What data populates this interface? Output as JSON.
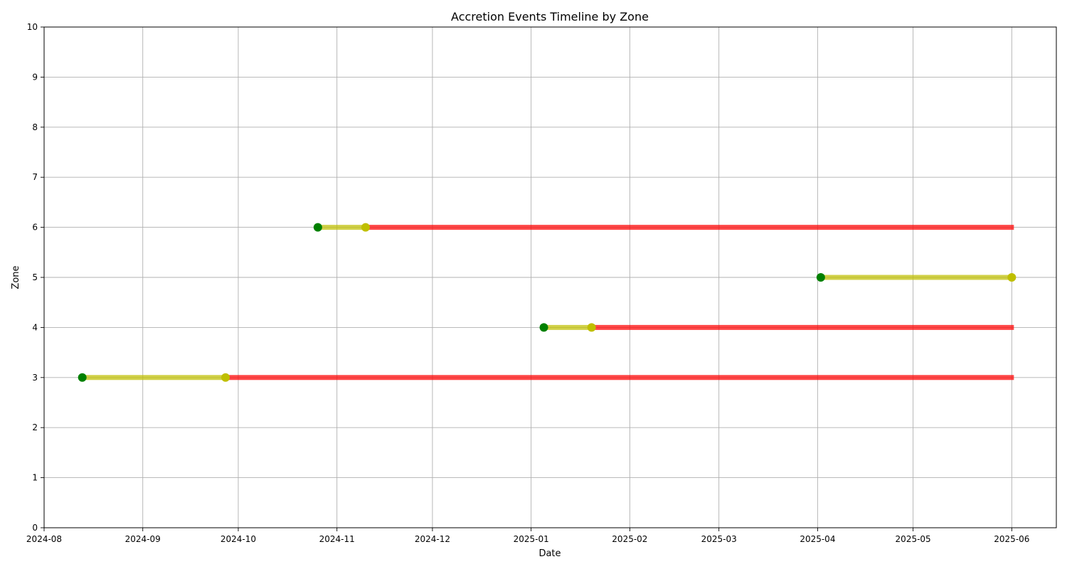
{
  "chart_data": {
    "type": "line",
    "title": "Accretion Events Timeline by Zone",
    "xlabel": "Date",
    "ylabel": "Zone",
    "xlim": [
      "2024-08-01",
      "2025-06-15"
    ],
    "ylim": [
      0,
      10
    ],
    "grid": true,
    "x_ticks": [
      "2024-08-01",
      "2024-09-01",
      "2024-10-01",
      "2024-11-01",
      "2024-12-01",
      "2025-01-01",
      "2025-02-01",
      "2025-03-01",
      "2025-04-01",
      "2025-05-01",
      "2025-06-01"
    ],
    "x_tick_labels": [
      "2024-08",
      "2024-09",
      "2024-10",
      "2024-11",
      "2024-12",
      "2025-01",
      "2025-02",
      "2025-03",
      "2025-04",
      "2025-05",
      "2025-06"
    ],
    "y_ticks": [
      0,
      1,
      2,
      3,
      4,
      5,
      6,
      7,
      8,
      9,
      10
    ],
    "segment_colors": {
      "early": "#bfbf00",
      "late": "#ff0000",
      "start_marker": "#008000",
      "mid_marker": "#bfbf00"
    },
    "events": [
      {
        "zone": 3,
        "start": "2024-08-13",
        "mid": "2024-09-27",
        "end": "2025-06-01"
      },
      {
        "zone": 6,
        "start": "2024-10-26",
        "mid": "2024-11-10",
        "end": "2025-06-01"
      },
      {
        "zone": 4,
        "start": "2025-01-05",
        "mid": "2025-01-20",
        "end": "2025-06-01"
      },
      {
        "zone": 5,
        "start": "2025-04-02",
        "mid": "2025-06-01",
        "end": null
      }
    ]
  }
}
